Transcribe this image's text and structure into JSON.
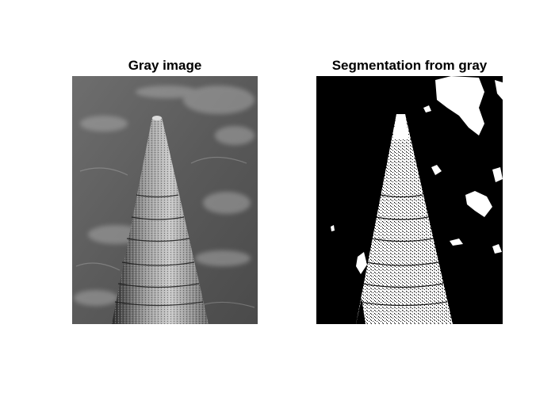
{
  "figure": {
    "panels": [
      {
        "title": "Gray image",
        "kind": "grayscale-photo",
        "subject": "brick chimney against cloudy sky"
      },
      {
        "title": "Segmentation from gray",
        "kind": "binary-mask",
        "subject": "thresholded chimney and clouds"
      }
    ]
  },
  "colors": {
    "background": "#ffffff",
    "mask_on": "#ffffff",
    "mask_off": "#000000"
  }
}
